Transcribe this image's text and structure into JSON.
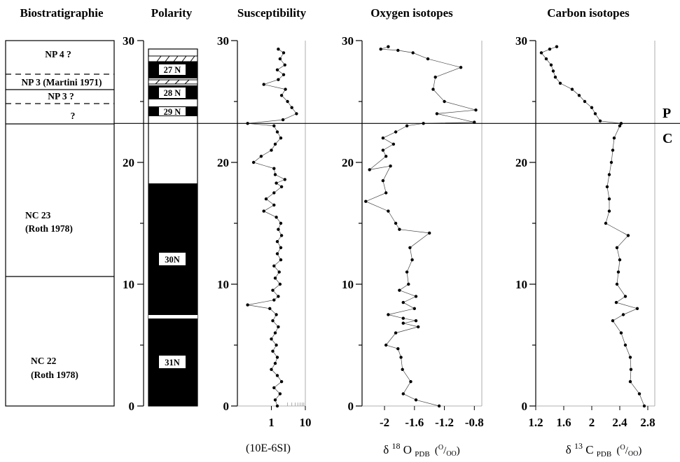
{
  "headers": {
    "biostrat": "Biostratigraphie",
    "polarity": "Polarity",
    "susceptibility": "Susceptibility",
    "oxygen": "Oxygen isotopes",
    "carbon": "Carbon isotopes"
  },
  "depth_ticks": [
    "0",
    "10",
    "20",
    "30"
  ],
  "biozones": [
    {
      "label": "NP 4 ?"
    },
    {
      "label": "NP 3 (Martini 1971)"
    },
    {
      "label": "NP 3 ?"
    },
    {
      "label": "?"
    },
    {
      "label": "NC 23",
      "label2": "(Roth 1978)"
    },
    {
      "label": "NC 22",
      "label2": "(Roth 1978)"
    }
  ],
  "chrons": [
    "27 N",
    "28 N",
    "29 N",
    "30N",
    "31N"
  ],
  "boundary": {
    "upper": "P",
    "lower": "C",
    "depth": 23.2
  },
  "units": {
    "susceptibility": "(10E-6SI)",
    "oxygen_delta": "δ",
    "oxygen_iso": "18",
    "oxygen_el": "O",
    "oxygen_sub": "PDB",
    "oxygen_paren": "(",
    "oxygen_permil_o1": "O",
    "oxygen_slash": "/",
    "oxygen_permil_o2": "OO",
    "oxygen_close": ")",
    "carbon_delta": "δ",
    "carbon_iso": "13",
    "carbon_el": "C",
    "carbon_sub": "PDB",
    "carbon_paren": "(",
    "carbon_permil_o1": "O",
    "carbon_slash": "/",
    "carbon_permil_o2": "OO",
    "carbon_close": ")"
  },
  "chart_data": [
    {
      "type": "line",
      "name": "susceptibility",
      "xscale": "log",
      "xlim": [
        0.1,
        10
      ],
      "ylim": [
        0,
        30
      ],
      "xticks": [
        "1",
        "10"
      ],
      "yticks": [
        "0",
        "10",
        "20",
        "30"
      ],
      "grid": false,
      "points": [
        [
          1.5,
          0
        ],
        [
          1.3,
          0.5
        ],
        [
          1.8,
          1
        ],
        [
          1.2,
          1.5
        ],
        [
          2.0,
          2
        ],
        [
          1.5,
          2.5
        ],
        [
          1.0,
          3
        ],
        [
          1.3,
          3.5
        ],
        [
          1.5,
          4
        ],
        [
          1.1,
          4.5
        ],
        [
          1.4,
          5
        ],
        [
          1.0,
          5.5
        ],
        [
          1.3,
          6
        ],
        [
          1.6,
          6.5
        ],
        [
          1.1,
          7
        ],
        [
          1.4,
          7.5
        ],
        [
          0.9,
          8
        ],
        [
          0.2,
          8.3
        ],
        [
          1.2,
          8.7
        ],
        [
          1.6,
          9
        ],
        [
          1.1,
          9.5
        ],
        [
          1.8,
          10
        ],
        [
          1.3,
          10.5
        ],
        [
          1.7,
          11
        ],
        [
          1.2,
          11.5
        ],
        [
          1.9,
          12
        ],
        [
          1.5,
          12.5
        ],
        [
          1.9,
          13
        ],
        [
          1.5,
          13.5
        ],
        [
          2.0,
          14
        ],
        [
          1.6,
          14.5
        ],
        [
          1.9,
          15
        ],
        [
          1.4,
          15.5
        ],
        [
          0.6,
          16
        ],
        [
          1.2,
          16.5
        ],
        [
          0.7,
          17
        ],
        [
          1.2,
          17.5
        ],
        [
          2.0,
          18
        ],
        [
          1.4,
          18.3
        ],
        [
          2.5,
          18.6
        ],
        [
          1.3,
          19
        ],
        [
          1.2,
          19.5
        ],
        [
          0.3,
          20
        ],
        [
          0.5,
          20.5
        ],
        [
          1.0,
          21
        ],
        [
          1.3,
          21.5
        ],
        [
          1.9,
          22
        ],
        [
          1.5,
          22.5
        ],
        [
          1.2,
          23
        ],
        [
          0.2,
          23.2
        ],
        [
          2.2,
          23.5
        ],
        [
          5.5,
          24
        ],
        [
          4.0,
          24.5
        ],
        [
          3.0,
          25
        ],
        [
          2.0,
          25.5
        ],
        [
          2.6,
          26
        ],
        [
          0.6,
          26.4
        ],
        [
          1.6,
          26.8
        ],
        [
          2.3,
          27.2
        ],
        [
          1.5,
          27.6
        ],
        [
          2.5,
          28
        ],
        [
          1.8,
          28.5
        ],
        [
          2.3,
          29
        ],
        [
          1.6,
          29.3
        ]
      ]
    },
    {
      "type": "line",
      "name": "oxygen",
      "xlim": [
        -2.3,
        -0.7
      ],
      "ylim": [
        0,
        30
      ],
      "xticks": [
        "-2",
        "-1.6",
        "-1.2",
        "-0.8"
      ],
      "yticks": [
        "0",
        "10",
        "20",
        "30"
      ],
      "grid": false,
      "points": [
        [
          -1.27,
          0
        ],
        [
          -1.58,
          0.5
        ],
        [
          -1.75,
          1
        ],
        [
          -1.65,
          2
        ],
        [
          -1.76,
          3
        ],
        [
          -1.78,
          4
        ],
        [
          -1.82,
          4.7
        ],
        [
          -1.98,
          5
        ],
        [
          -1.85,
          6
        ],
        [
          -1.55,
          6.5
        ],
        [
          -1.75,
          6.8
        ],
        [
          -1.58,
          7
        ],
        [
          -1.75,
          7.2
        ],
        [
          -1.95,
          7.5
        ],
        [
          -1.6,
          8
        ],
        [
          -1.75,
          8.5
        ],
        [
          -1.58,
          9
        ],
        [
          -1.8,
          9.5
        ],
        [
          -1.68,
          10
        ],
        [
          -1.7,
          11
        ],
        [
          -1.63,
          12
        ],
        [
          -1.66,
          13
        ],
        [
          -1.4,
          14.2
        ],
        [
          -1.8,
          14.5
        ],
        [
          -1.85,
          15
        ],
        [
          -1.95,
          16
        ],
        [
          -2.25,
          16.8
        ],
        [
          -1.98,
          17.5
        ],
        [
          -2.02,
          18.5
        ],
        [
          -1.92,
          19.7
        ],
        [
          -2.2,
          19.4
        ],
        [
          -1.98,
          20.5
        ],
        [
          -2.02,
          21
        ],
        [
          -1.88,
          21.5
        ],
        [
          -2.02,
          22
        ],
        [
          -1.85,
          22.5
        ],
        [
          -1.7,
          23
        ],
        [
          -1.48,
          23.2
        ],
        [
          -0.8,
          23.3
        ],
        [
          -1.3,
          24
        ],
        [
          -0.78,
          24.3
        ],
        [
          -1.2,
          25
        ],
        [
          -1.35,
          26
        ],
        [
          -1.32,
          27
        ],
        [
          -0.98,
          27.8
        ],
        [
          -1.42,
          28.5
        ],
        [
          -1.62,
          29
        ],
        [
          -1.82,
          29.2
        ],
        [
          -2.05,
          29.3
        ],
        [
          -1.95,
          29.5
        ]
      ]
    },
    {
      "type": "line",
      "name": "carbon",
      "xlim": [
        1.2,
        2.9
      ],
      "ylim": [
        0,
        30
      ],
      "xticks": [
        "1.2",
        "1.6",
        "2",
        "2.4",
        "2.8"
      ],
      "yticks": [
        "0",
        "10",
        "20",
        "30"
      ],
      "grid": false,
      "points": [
        [
          2.75,
          0
        ],
        [
          2.68,
          1
        ],
        [
          2.55,
          2
        ],
        [
          2.56,
          3
        ],
        [
          2.55,
          4
        ],
        [
          2.48,
          5
        ],
        [
          2.42,
          6
        ],
        [
          2.3,
          7
        ],
        [
          2.45,
          7.5
        ],
        [
          2.65,
          8
        ],
        [
          2.35,
          8.5
        ],
        [
          2.48,
          9
        ],
        [
          2.36,
          10
        ],
        [
          2.38,
          11
        ],
        [
          2.4,
          12
        ],
        [
          2.36,
          13
        ],
        [
          2.52,
          14
        ],
        [
          2.2,
          15
        ],
        [
          2.25,
          16
        ],
        [
          2.25,
          17
        ],
        [
          2.22,
          18
        ],
        [
          2.25,
          19
        ],
        [
          2.28,
          20
        ],
        [
          2.3,
          21
        ],
        [
          2.32,
          22
        ],
        [
          2.4,
          23
        ],
        [
          2.42,
          23.2
        ],
        [
          2.12,
          23.4
        ],
        [
          2.05,
          24
        ],
        [
          2.0,
          24.5
        ],
        [
          1.9,
          25
        ],
        [
          1.82,
          25.5
        ],
        [
          1.72,
          26
        ],
        [
          1.55,
          26.5
        ],
        [
          1.48,
          27
        ],
        [
          1.45,
          27.5
        ],
        [
          1.42,
          28
        ],
        [
          1.35,
          28.5
        ],
        [
          1.28,
          29
        ],
        [
          1.4,
          29.3
        ],
        [
          1.5,
          29.5
        ]
      ]
    }
  ]
}
